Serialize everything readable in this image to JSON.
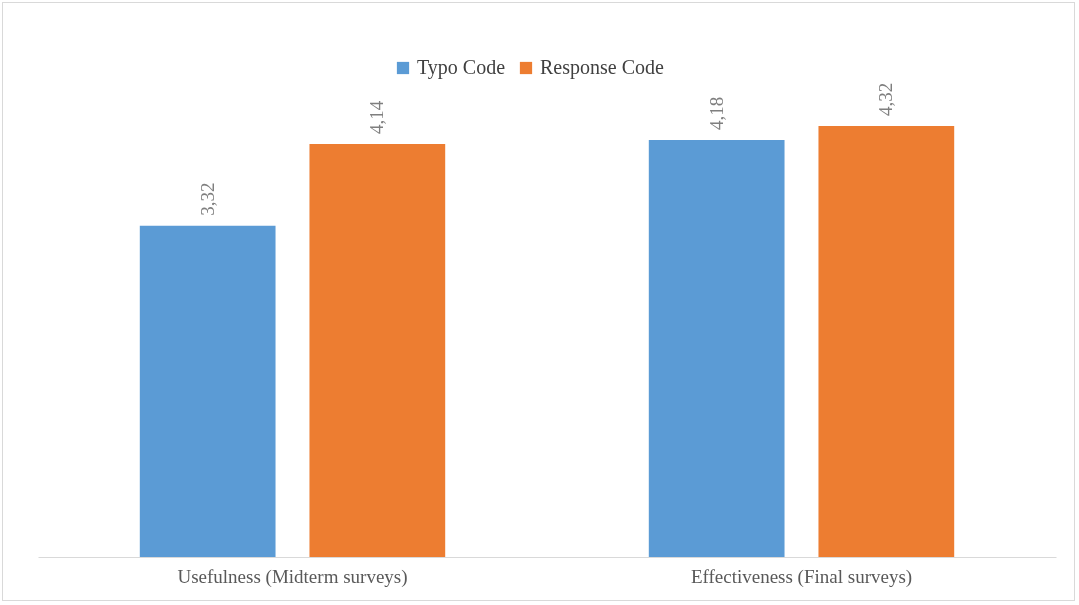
{
  "chart_data": {
    "type": "bar",
    "categories": [
      "Usefulness (Midterm surveys)",
      "Effectiveness (Final surveys)"
    ],
    "series": [
      {
        "name": "Typo Code",
        "color": "#5b9bd5",
        "values": [
          3.32,
          4.18
        ],
        "value_labels": [
          "3,32",
          "4,18"
        ]
      },
      {
        "name": "Response Code",
        "color": "#ed7d31",
        "values": [
          4.14,
          4.32
        ],
        "value_labels": [
          "4,14",
          "4,32"
        ]
      }
    ],
    "legend": "top",
    "grid": false
  }
}
